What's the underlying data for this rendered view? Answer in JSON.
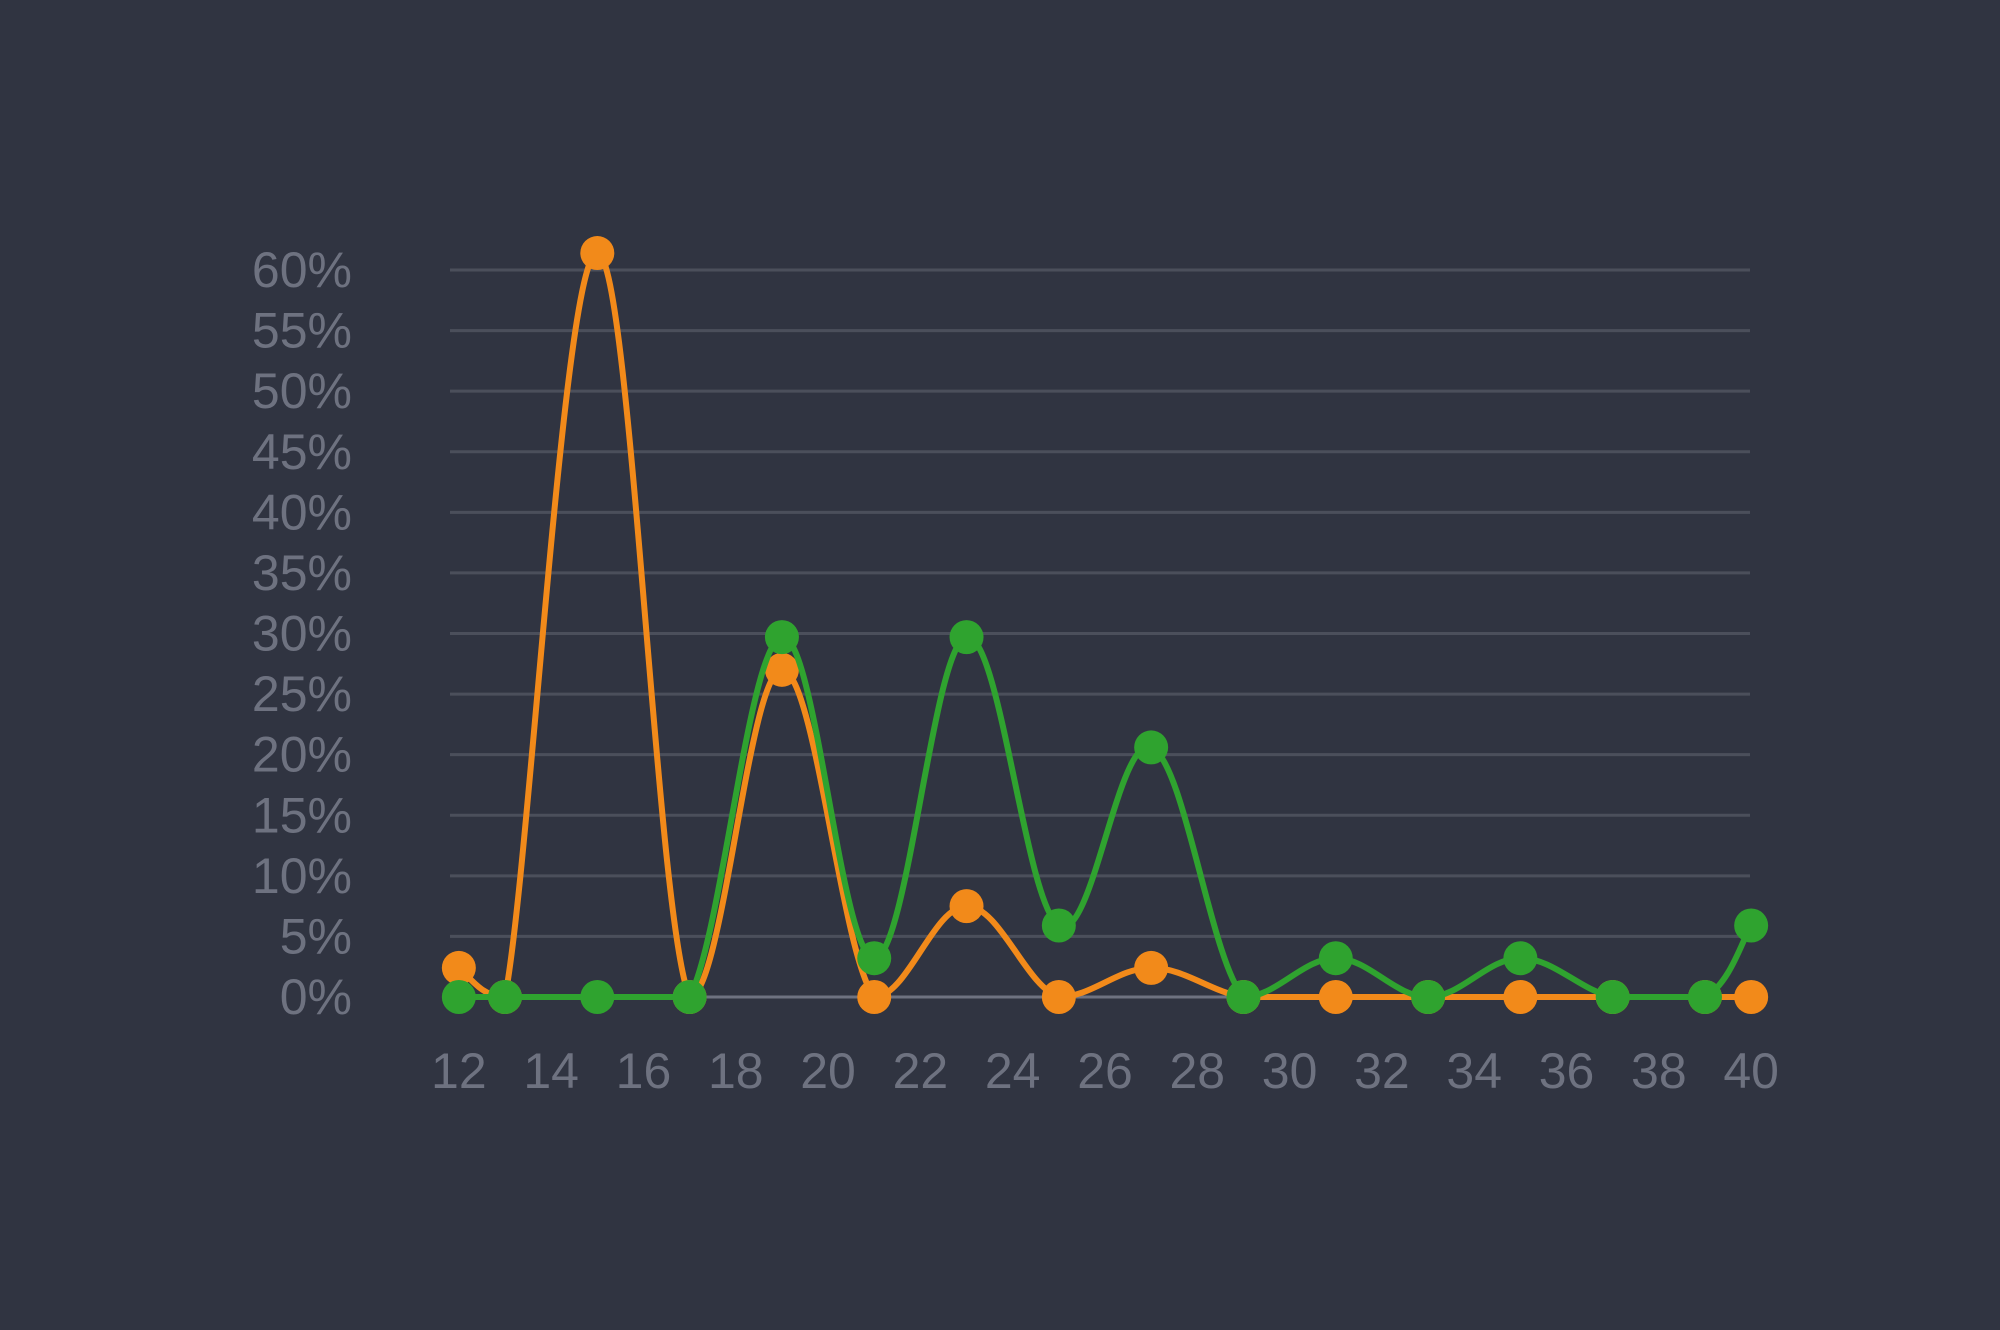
{
  "chart_data": {
    "type": "line",
    "title": "",
    "xlabel": "",
    "ylabel": "",
    "x": [
      12,
      13,
      15,
      17,
      19,
      21,
      23,
      25,
      27,
      29,
      31,
      33,
      35,
      37,
      39,
      40
    ],
    "xlim": [
      11.7,
      40.3
    ],
    "x_ticks": [
      "12",
      "14",
      "16",
      "18",
      "20",
      "22",
      "24",
      "26",
      "28",
      "30",
      "32",
      "34",
      "36",
      "38",
      "40"
    ],
    "x_tick_values": [
      12,
      14,
      16,
      18,
      20,
      22,
      24,
      26,
      28,
      30,
      32,
      34,
      36,
      38,
      40
    ],
    "ylim": [
      0,
      60
    ],
    "y_ticks": [
      "0%",
      "5%",
      "10%",
      "15%",
      "20%",
      "25%",
      "30%",
      "35%",
      "40%",
      "45%",
      "50%",
      "55%",
      "60%"
    ],
    "y_tick_values": [
      0,
      5,
      10,
      15,
      20,
      25,
      30,
      35,
      40,
      45,
      50,
      55,
      60
    ],
    "grid": true,
    "legend": "none",
    "series": [
      {
        "color": "#f28a1a",
        "values": [
          2.4,
          0,
          61.4,
          0,
          27,
          0,
          7.5,
          0,
          2.4,
          0,
          0,
          0,
          0,
          0,
          0,
          0
        ]
      },
      {
        "color": "#2fa32f",
        "values": [
          0,
          0,
          0,
          0,
          29.7,
          3.2,
          29.7,
          5.9,
          20.6,
          0,
          3.2,
          0,
          3.2,
          0,
          0,
          5.9
        ]
      }
    ]
  }
}
